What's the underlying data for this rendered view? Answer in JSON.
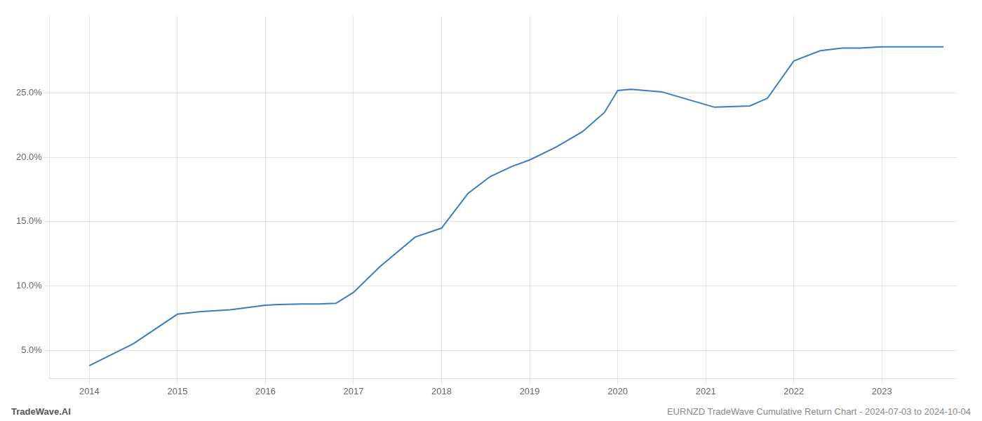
{
  "chart_data": {
    "type": "line",
    "x": [
      2014.0,
      2014.5,
      2015.0,
      2015.25,
      2015.6,
      2016.0,
      2016.15,
      2016.4,
      2016.6,
      2016.8,
      2017.0,
      2017.3,
      2017.7,
      2018.0,
      2018.3,
      2018.55,
      2018.8,
      2019.0,
      2019.3,
      2019.6,
      2019.85,
      2020.0,
      2020.15,
      2020.5,
      2020.8,
      2021.1,
      2021.5,
      2021.7,
      2022.0,
      2022.3,
      2022.55,
      2022.75,
      2023.0,
      2023.3,
      2023.7
    ],
    "values": [
      3.8,
      5.5,
      7.8,
      8.0,
      8.15,
      8.5,
      8.55,
      8.6,
      8.6,
      8.65,
      9.5,
      11.5,
      13.8,
      14.5,
      17.2,
      18.5,
      19.3,
      19.8,
      20.8,
      22.0,
      23.5,
      25.2,
      25.3,
      25.1,
      24.5,
      23.9,
      24.0,
      24.6,
      27.5,
      28.3,
      28.5,
      28.5,
      28.6,
      28.6,
      28.6
    ],
    "color": "#3a7ebf",
    "xlim": [
      2013.55,
      2023.85
    ],
    "ylim": [
      2.8,
      31.0
    ],
    "xticks": [
      2014,
      2015,
      2016,
      2017,
      2018,
      2019,
      2020,
      2021,
      2022,
      2023
    ],
    "yticks": [
      {
        "value": 5.0,
        "label": "5.0%"
      },
      {
        "value": 10.0,
        "label": "10.0%"
      },
      {
        "value": 15.0,
        "label": "15.0%"
      },
      {
        "value": 20.0,
        "label": "20.0%"
      },
      {
        "value": 25.0,
        "label": "25.0%"
      }
    ],
    "grid": true,
    "annotations": [
      "TradeWave.AI",
      "EURNZD TradeWave Cumulative Return Chart - 2024-07-03 to 2024-10-04"
    ]
  }
}
